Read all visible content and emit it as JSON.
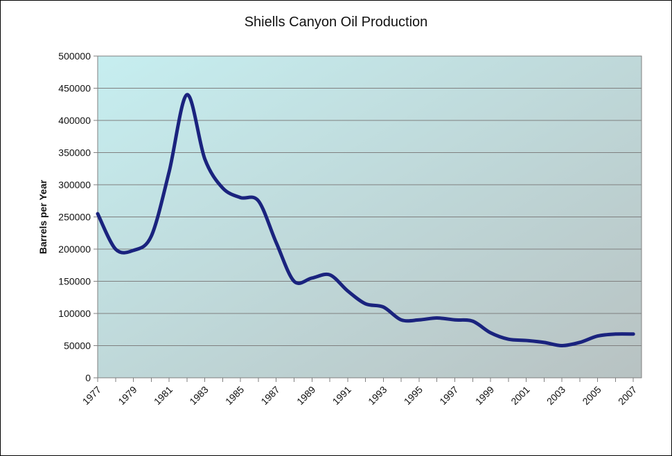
{
  "chart": {
    "type": "line",
    "title": "Shiells Canyon Oil Production",
    "title_fontsize": 20,
    "ylabel": "Barrels per Year",
    "label_fontsize": 14,
    "categories": [
      "1977",
      "1978",
      "1979",
      "1980",
      "1981",
      "1982",
      "1983",
      "1984",
      "1985",
      "1986",
      "1987",
      "1988",
      "1989",
      "1990",
      "1991",
      "1992",
      "1993",
      "1994",
      "1995",
      "1996",
      "1997",
      "1998",
      "1999",
      "2000",
      "2001",
      "2002",
      "2003",
      "2004",
      "2005",
      "2006",
      "2007"
    ],
    "x_tick_step": 2,
    "values": [
      255000,
      200000,
      198000,
      220000,
      320000,
      440000,
      340000,
      295000,
      280000,
      275000,
      210000,
      150000,
      155000,
      160000,
      135000,
      115000,
      110000,
      90000,
      90000,
      93000,
      90000,
      88000,
      70000,
      60000,
      58000,
      55000,
      50000,
      55000,
      65000,
      68000,
      68000
    ],
    "ylim": [
      0,
      500000
    ],
    "ytick_step": 50000,
    "line_color": "#1a237e",
    "line_width": 5,
    "grid_color": "#7f7f7f",
    "tick_color": "#7f7f7f",
    "tick_fontsize": 14,
    "x_tick_rotation": -45,
    "plot_background_gradient": {
      "from": "#c6eef0",
      "to": "#b8c2c2",
      "angle_deg": 135
    },
    "outer_background": "#ffffff",
    "border_color": "#000000",
    "data_starts_at_left_axis": true,
    "smoothing": 0.16
  }
}
